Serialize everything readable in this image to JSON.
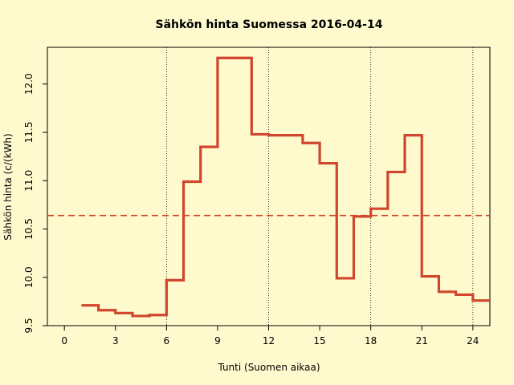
{
  "chart_data": {
    "type": "line",
    "step": true,
    "title": "Sähkön hinta Suomessa 2016-04-14",
    "xlabel": "Tunti (Suomen aikaa)",
    "ylabel": "Sähkön hinta (c/(kWh)",
    "xlim": [
      -1,
      25
    ],
    "ylim": [
      9.5,
      12.38
    ],
    "xticks": [
      0,
      3,
      6,
      9,
      12,
      15,
      18,
      21,
      24
    ],
    "yticks": [
      9.5,
      10.0,
      10.5,
      11.0,
      11.5,
      12.0
    ],
    "ytick_labels": [
      "9.5",
      "10.0",
      "10.5",
      "11.0",
      "11.5",
      "12.0"
    ],
    "vlines": [
      6,
      12,
      18,
      24
    ],
    "mean_line": 10.64,
    "grid": false,
    "line_color": "#d0452e",
    "mean_color": "#d0452e",
    "series": [
      {
        "x": [
          1,
          2,
          3,
          4,
          5,
          6,
          7,
          8,
          9,
          10,
          11,
          12,
          13,
          14,
          15,
          16,
          17,
          18,
          19,
          20,
          21,
          22,
          23,
          24,
          25
        ],
        "values": [
          9.71,
          9.66,
          9.63,
          9.6,
          9.61,
          9.97,
          10.99,
          11.35,
          12.27,
          12.27,
          11.48,
          11.47,
          11.47,
          11.39,
          11.18,
          9.99,
          10.63,
          10.71,
          11.09,
          11.47,
          10.01,
          9.85,
          9.82,
          9.76,
          9.76
        ]
      }
    ]
  }
}
